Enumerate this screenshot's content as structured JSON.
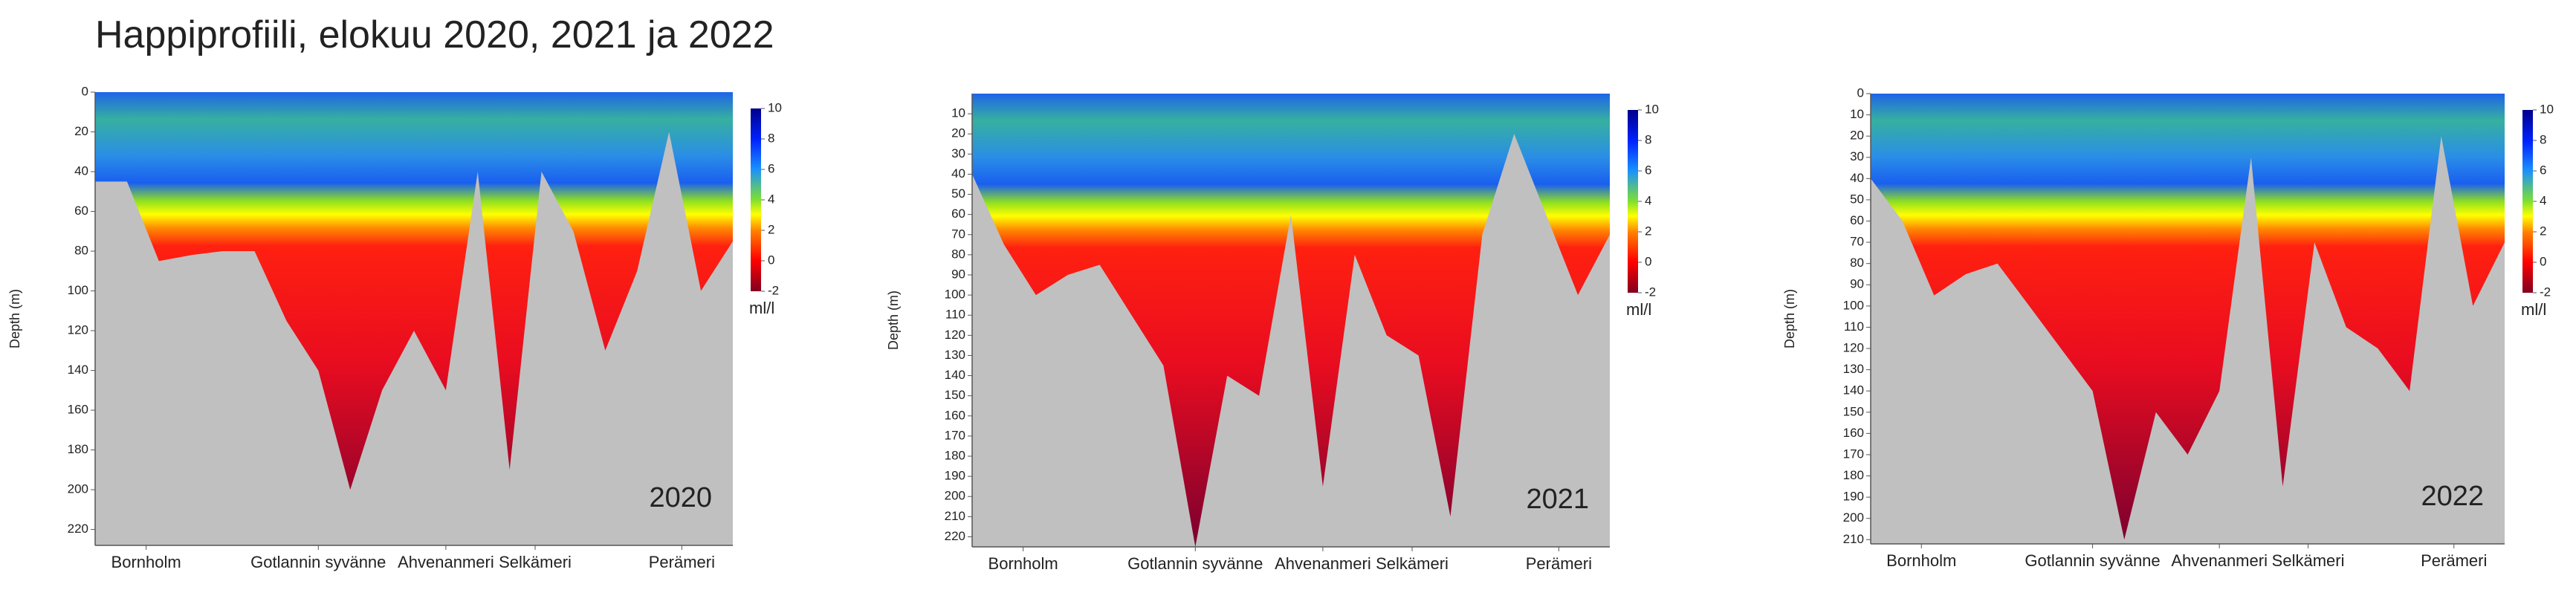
{
  "title": "Happiprofiili, elokuu 2020, 2021 ja 2022",
  "chart_data": [
    {
      "type": "contour",
      "annotation": "2020",
      "y_label": "Depth (m)",
      "colorbar_label": "ml/l",
      "categories": [
        "Bornholm",
        "Gotlannin syvänne",
        "Ahvenanmeri",
        "Selkämeri",
        "Perämeri"
      ],
      "ylim": [
        0,
        228
      ],
      "yticks": [
        0,
        20,
        40,
        60,
        80,
        100,
        120,
        140,
        160,
        180,
        200,
        220
      ],
      "clim": [
        -2,
        10
      ],
      "cticks": [
        10,
        8,
        6,
        4,
        2,
        0,
        -2
      ],
      "seabed_depth": [
        45,
        45,
        85,
        82,
        80,
        80,
        115,
        140,
        200,
        150,
        120,
        150,
        40,
        190,
        40,
        70,
        130,
        90,
        20,
        100,
        75
      ]
    },
    {
      "type": "contour",
      "annotation": "2021",
      "y_label": "Depth (m)",
      "colorbar_label": "ml/l",
      "categories": [
        "Bornholm",
        "Gotlannin syvänne",
        "Ahvenanmeri",
        "Selkämeri",
        "Perämeri"
      ],
      "ylim": [
        0,
        225
      ],
      "yticks": [
        10,
        20,
        30,
        40,
        50,
        60,
        70,
        80,
        90,
        100,
        110,
        120,
        130,
        140,
        150,
        160,
        170,
        180,
        190,
        200,
        210,
        220
      ],
      "clim": [
        -2,
        10
      ],
      "cticks": [
        10,
        8,
        6,
        4,
        2,
        0,
        -2
      ],
      "seabed_depth": [
        40,
        75,
        100,
        90,
        85,
        110,
        135,
        225,
        140,
        150,
        60,
        195,
        80,
        120,
        130,
        210,
        70,
        20,
        60,
        100,
        70
      ]
    },
    {
      "type": "contour",
      "annotation": "2022",
      "y_label": "Depth (m)",
      "colorbar_label": "ml/l",
      "categories": [
        "Bornholm",
        "Gotlannin syvänne",
        "Ahvenanmeri",
        "Selkämeri",
        "Perämeri"
      ],
      "ylim": [
        0,
        212
      ],
      "yticks": [
        0,
        10,
        20,
        30,
        40,
        50,
        60,
        70,
        80,
        90,
        100,
        110,
        120,
        130,
        140,
        150,
        160,
        170,
        180,
        190,
        200,
        210
      ],
      "clim": [
        -2,
        10
      ],
      "cticks": [
        10,
        8,
        6,
        4,
        2,
        0,
        -2
      ],
      "seabed_depth": [
        40,
        60,
        95,
        85,
        80,
        100,
        120,
        140,
        210,
        150,
        170,
        140,
        30,
        185,
        70,
        110,
        120,
        140,
        20,
        100,
        70
      ]
    }
  ]
}
